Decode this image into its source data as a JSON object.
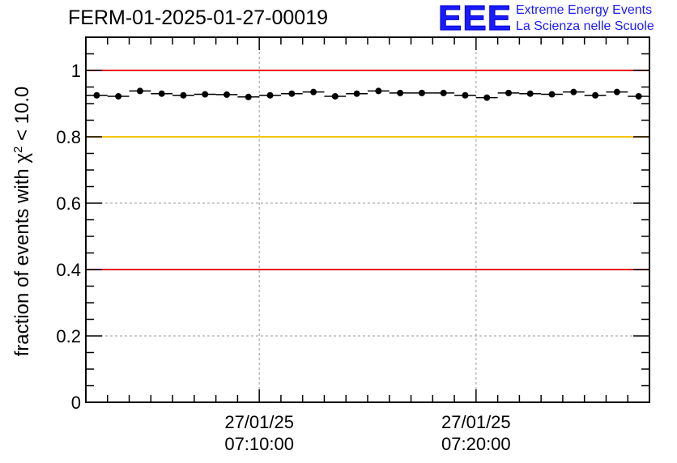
{
  "header": {
    "title": "FERM-01-2025-01-27-00019"
  },
  "logo": {
    "mark": "EEE",
    "line1": "Extreme Energy Events",
    "line2": "La Scienza nelle Scuole"
  },
  "chart_data": {
    "type": "scatter",
    "title": "FERM-01-2025-01-27-00019",
    "xlabel": "",
    "ylabel_parts": [
      "fraction of events with ",
      "χ",
      "2",
      " < 10.0"
    ],
    "ylim": [
      0,
      1.1
    ],
    "xlim_minutes": [
      0,
      26
    ],
    "y_ticks": [
      0,
      0.2,
      0.4,
      0.6,
      0.8,
      1
    ],
    "y_tick_labels": [
      "0",
      "0.2",
      "0.4",
      "0.6",
      "0.8",
      "1"
    ],
    "x_ticks": [
      {
        "minute": 8,
        "date": "27/01/25",
        "time": "07:10:00"
      },
      {
        "minute": 18,
        "date": "27/01/25",
        "time": "07:20:00"
      }
    ],
    "grid": true,
    "reference_lines": [
      {
        "y": 1.0,
        "color": "#e81010"
      },
      {
        "y": 0.8,
        "color": "#f5c400"
      },
      {
        "y": 0.4,
        "color": "#e81010"
      }
    ],
    "series": [
      {
        "name": "fraction",
        "bin_width_minutes": 1,
        "x": [
          0.5,
          1.5,
          2.5,
          3.5,
          4.5,
          5.5,
          6.5,
          7.5,
          8.5,
          9.5,
          10.5,
          11.5,
          12.5,
          13.5,
          14.5,
          15.5,
          16.5,
          17.5,
          18.5,
          19.5,
          20.5,
          21.5,
          22.5,
          23.5,
          24.5,
          25.5
        ],
        "y": [
          0.925,
          0.922,
          0.938,
          0.93,
          0.925,
          0.928,
          0.927,
          0.92,
          0.925,
          0.93,
          0.935,
          0.922,
          0.93,
          0.938,
          0.932,
          0.932,
          0.932,
          0.925,
          0.918,
          0.932,
          0.93,
          0.928,
          0.935,
          0.925,
          0.935,
          0.922
        ]
      }
    ]
  }
}
